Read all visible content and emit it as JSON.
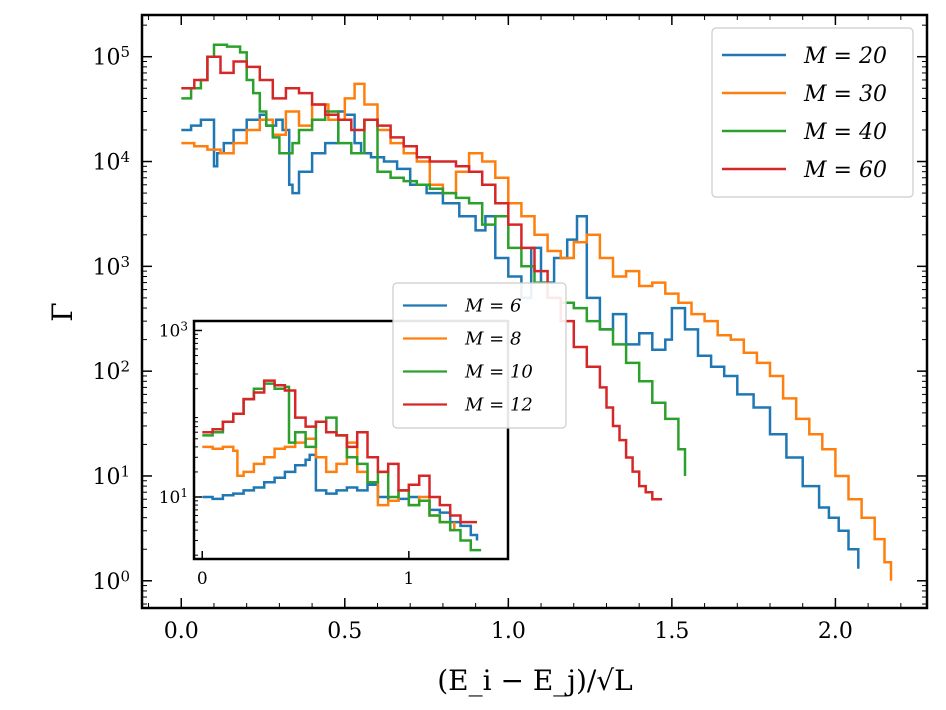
{
  "chart_data": [
    {
      "type": "line",
      "title": "",
      "xlabel": "(E_i − E_j)/√L",
      "ylabel": "Γ",
      "xscale": "linear",
      "yscale": "log",
      "xlim": [
        -0.12,
        2.28
      ],
      "ylim": [
        0.55,
        250000
      ],
      "x_ticks": [
        0.0,
        0.5,
        1.0,
        1.5,
        2.0
      ],
      "x_tick_labels": [
        "0.0",
        "0.5",
        "1.0",
        "1.5",
        "2.0"
      ],
      "y_ticks": [
        1,
        10,
        100,
        1000,
        10000,
        100000
      ],
      "y_tick_labels": [
        "10^0",
        "10^1",
        "10^2",
        "10^3",
        "10^4",
        "10^5"
      ],
      "legend_location": "top-right",
      "series": [
        {
          "name": "M = 20",
          "color": "#1f77b4",
          "x": [
            0.0,
            0.03,
            0.06,
            0.1,
            0.11,
            0.13,
            0.16,
            0.2,
            0.24,
            0.26,
            0.29,
            0.31,
            0.33,
            0.34,
            0.36,
            0.4,
            0.44,
            0.48,
            0.5,
            0.53,
            0.55,
            0.58,
            0.62,
            0.66,
            0.7,
            0.75,
            0.8,
            0.85,
            0.9,
            0.93,
            0.96,
            1.0,
            1.04,
            1.07,
            1.1,
            1.14,
            1.18,
            1.21,
            1.24,
            1.28,
            1.32,
            1.36,
            1.4,
            1.44,
            1.48,
            1.5,
            1.54,
            1.58,
            1.62,
            1.66,
            1.7,
            1.75,
            1.8,
            1.85,
            1.9,
            1.95,
            1.98,
            2.01,
            2.04,
            2.07
          ],
          "y": [
            20000,
            22000,
            25000,
            9000,
            12000,
            15000,
            20000,
            25000,
            28000,
            22000,
            25000,
            20000,
            6000,
            5000,
            8000,
            12000,
            15000,
            30000,
            28000,
            15000,
            12000,
            11000,
            10000,
            8500,
            6000,
            5000,
            4000,
            3000,
            2200,
            3000,
            1200,
            800,
            500,
            1500,
            700,
            1200,
            1800,
            3000,
            500,
            250,
            350,
            180,
            230,
            160,
            200,
            400,
            250,
            140,
            110,
            90,
            60,
            45,
            25,
            15,
            8,
            5,
            4,
            3,
            2,
            1.3
          ]
        },
        {
          "name": "M = 30",
          "color": "#ff7f0e",
          "x": [
            0.0,
            0.04,
            0.08,
            0.12,
            0.16,
            0.2,
            0.24,
            0.28,
            0.32,
            0.36,
            0.4,
            0.45,
            0.5,
            0.53,
            0.56,
            0.6,
            0.64,
            0.68,
            0.72,
            0.76,
            0.8,
            0.84,
            0.88,
            0.92,
            0.96,
            1.0,
            1.04,
            1.08,
            1.12,
            1.16,
            1.2,
            1.24,
            1.28,
            1.32,
            1.36,
            1.4,
            1.44,
            1.48,
            1.52,
            1.56,
            1.6,
            1.64,
            1.68,
            1.72,
            1.76,
            1.8,
            1.84,
            1.88,
            1.92,
            1.96,
            2.0,
            2.04,
            2.08,
            2.12,
            2.15,
            2.17
          ],
          "y": [
            15000,
            14000,
            13000,
            12000,
            15000,
            20000,
            25000,
            18000,
            30000,
            22000,
            35000,
            25000,
            40000,
            55000,
            35000,
            20000,
            15000,
            12000,
            10000,
            6000,
            5000,
            8000,
            12000,
            10000,
            7000,
            4000,
            3000,
            2000,
            1400,
            1200,
            1700,
            2000,
            1200,
            800,
            900,
            650,
            700,
            550,
            450,
            350,
            300,
            220,
            200,
            150,
            120,
            90,
            55,
            35,
            25,
            18,
            10,
            6,
            4,
            2.5,
            1.5,
            1.0
          ]
        },
        {
          "name": "M = 40",
          "color": "#2ca02c",
          "x": [
            0.0,
            0.03,
            0.06,
            0.08,
            0.1,
            0.14,
            0.18,
            0.2,
            0.22,
            0.24,
            0.26,
            0.28,
            0.3,
            0.34,
            0.36,
            0.4,
            0.44,
            0.48,
            0.52,
            0.56,
            0.6,
            0.64,
            0.68,
            0.72,
            0.76,
            0.8,
            0.84,
            0.88,
            0.92,
            0.96,
            1.0,
            1.04,
            1.08,
            1.12,
            1.16,
            1.2,
            1.24,
            1.28,
            1.32,
            1.36,
            1.4,
            1.44,
            1.48,
            1.52,
            1.54
          ],
          "y": [
            40000,
            50000,
            60000,
            100000,
            130000,
            125000,
            110000,
            60000,
            45000,
            30000,
            22000,
            17000,
            12000,
            15000,
            20000,
            25000,
            30000,
            15000,
            12000,
            25000,
            8000,
            7000,
            6500,
            6000,
            5500,
            5000,
            4500,
            4000,
            2500,
            3000,
            1500,
            1000,
            700,
            500,
            450,
            400,
            300,
            250,
            180,
            120,
            80,
            50,
            35,
            18,
            10
          ]
        },
        {
          "name": "M = 60",
          "color": "#d62728",
          "x": [
            0.0,
            0.04,
            0.08,
            0.12,
            0.16,
            0.2,
            0.24,
            0.28,
            0.32,
            0.36,
            0.4,
            0.44,
            0.48,
            0.52,
            0.56,
            0.6,
            0.64,
            0.68,
            0.72,
            0.76,
            0.8,
            0.84,
            0.88,
            0.92,
            0.96,
            1.0,
            1.04,
            1.08,
            1.12,
            1.16,
            1.2,
            1.24,
            1.28,
            1.3,
            1.32,
            1.34,
            1.36,
            1.38,
            1.4,
            1.42,
            1.44,
            1.47
          ],
          "y": [
            50000,
            60000,
            100000,
            70000,
            90000,
            80000,
            60000,
            40000,
            50000,
            45000,
            35000,
            28000,
            25000,
            20000,
            25000,
            22000,
            17000,
            14000,
            11000,
            10000,
            10000,
            9000,
            8000,
            6000,
            4000,
            2500,
            1500,
            900,
            500,
            300,
            170,
            110,
            70,
            45,
            30,
            22,
            15,
            11,
            8,
            7,
            6,
            6
          ]
        }
      ]
    },
    {
      "type": "line",
      "title": "",
      "xlabel": "",
      "ylabel": "",
      "xscale": "linear",
      "yscale": "log",
      "xlim": [
        -0.04,
        1.48
      ],
      "ylim": [
        1.8,
        1300
      ],
      "x_ticks": [
        0,
        1
      ],
      "x_tick_labels": [
        "0",
        "1"
      ],
      "y_ticks": [
        10,
        1000
      ],
      "y_tick_labels": [
        "10^1",
        "10^3"
      ],
      "legend_location": "top-right",
      "series": [
        {
          "name": "M = 6",
          "color": "#1f77b4",
          "x": [
            0.0,
            0.05,
            0.1,
            0.15,
            0.2,
            0.25,
            0.3,
            0.35,
            0.4,
            0.45,
            0.5,
            0.52,
            0.55,
            0.6,
            0.65,
            0.7,
            0.75,
            0.8,
            0.85,
            0.9,
            0.95,
            1.0,
            1.05,
            1.1,
            1.15,
            1.2,
            1.25,
            1.3,
            1.33
          ],
          "y": [
            10,
            9.5,
            10.5,
            11,
            12,
            13,
            15,
            17,
            20,
            24,
            28,
            32,
            12,
            11,
            12,
            13,
            12,
            14,
            10,
            9,
            9.5,
            10,
            9,
            7,
            6.5,
            5,
            4.5,
            3.5,
            3
          ]
        },
        {
          "name": "M = 8",
          "color": "#ff7f0e",
          "x": [
            0.0,
            0.05,
            0.1,
            0.15,
            0.17,
            0.2,
            0.25,
            0.3,
            0.35,
            0.4,
            0.45,
            0.5,
            0.55,
            0.6,
            0.65,
            0.7,
            0.75,
            0.8,
            0.85,
            0.9,
            0.95,
            1.0,
            1.05,
            1.1,
            1.15,
            1.2,
            1.22
          ],
          "y": [
            40,
            38,
            40,
            36,
            18,
            20,
            25,
            30,
            38,
            40,
            45,
            50,
            30,
            20,
            25,
            45,
            20,
            15,
            8,
            9,
            12,
            8,
            10,
            6,
            5,
            4,
            5
          ]
        },
        {
          "name": "M = 10",
          "color": "#2ca02c",
          "x": [
            0.0,
            0.05,
            0.1,
            0.15,
            0.2,
            0.25,
            0.3,
            0.35,
            0.4,
            0.42,
            0.45,
            0.5,
            0.55,
            0.6,
            0.65,
            0.7,
            0.75,
            0.8,
            0.85,
            0.9,
            0.95,
            1.0,
            1.05,
            1.1,
            1.15,
            1.2,
            1.25,
            1.3,
            1.35
          ],
          "y": [
            55,
            60,
            80,
            100,
            150,
            200,
            230,
            200,
            210,
            45,
            60,
            40,
            80,
            90,
            55,
            30,
            25,
            15,
            20,
            10,
            12,
            8,
            9,
            6,
            5,
            4,
            3,
            2.3,
            2.3
          ]
        },
        {
          "name": "M = 12",
          "color": "#d62728",
          "x": [
            0.0,
            0.05,
            0.1,
            0.15,
            0.2,
            0.25,
            0.3,
            0.35,
            0.4,
            0.45,
            0.5,
            0.55,
            0.6,
            0.65,
            0.7,
            0.75,
            0.8,
            0.85,
            0.9,
            0.95,
            1.0,
            1.05,
            1.1,
            1.15,
            1.2,
            1.25,
            1.3,
            1.33
          ],
          "y": [
            60,
            65,
            80,
            100,
            150,
            180,
            250,
            220,
            190,
            90,
            70,
            80,
            60,
            55,
            40,
            60,
            30,
            20,
            25,
            12,
            14,
            18,
            10,
            8,
            6,
            5,
            5,
            5
          ]
        }
      ]
    }
  ]
}
